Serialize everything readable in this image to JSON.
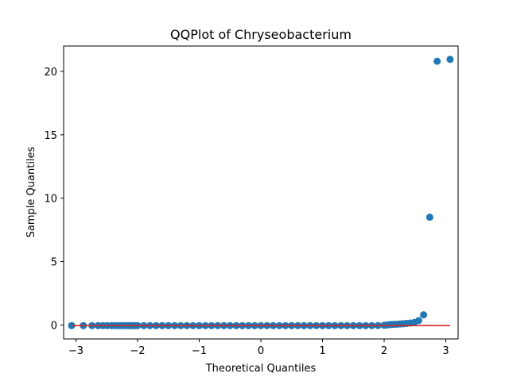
{
  "chart_data": {
    "type": "scatter",
    "title": "QQPlot of Chryseobacterium",
    "xlabel": "Theoretical Quantiles",
    "ylabel": "Sample Quantiles",
    "xlim": [
      -3.2,
      3.2
    ],
    "ylim": [
      -1.1,
      22.0
    ],
    "xticks": [
      -3,
      -2,
      -1,
      0,
      1,
      2,
      3
    ],
    "xtick_labels": [
      "−3",
      "−2",
      "−1",
      "0",
      "1",
      "2",
      "3"
    ],
    "yticks": [
      0,
      5,
      10,
      15,
      20
    ],
    "ytick_labels": [
      "0",
      "5",
      "10",
      "15",
      "20"
    ],
    "grid": false,
    "colors": {
      "points": "#1f77b4",
      "reference_line": "#d62728"
    },
    "reference_line": {
      "x": [
        -3.07,
        3.07
      ],
      "y": [
        -0.05,
        -0.05
      ]
    },
    "series": [
      {
        "x": [
          -3.07,
          -2.88,
          -2.74,
          -2.64,
          -2.56,
          -2.49,
          -2.42,
          -2.36,
          -2.31,
          -2.26,
          -2.21,
          -2.16,
          -2.12,
          -2.08,
          -2.04,
          -2.0,
          -1.9,
          -1.8,
          -1.7,
          -1.6,
          -1.5,
          -1.4,
          -1.3,
          -1.2,
          -1.1,
          -1.0,
          -0.9,
          -0.8,
          -0.7,
          -0.6,
          -0.5,
          -0.4,
          -0.3,
          -0.2,
          -0.1,
          0.0,
          0.1,
          0.2,
          0.3,
          0.4,
          0.5,
          0.6,
          0.7,
          0.8,
          0.9,
          1.0,
          1.1,
          1.2,
          1.3,
          1.4,
          1.5,
          1.6,
          1.7,
          1.8,
          1.9,
          2.0,
          2.04,
          2.08,
          2.12,
          2.16,
          2.21,
          2.26,
          2.31,
          2.36,
          2.42,
          2.49,
          2.56,
          2.64,
          2.74,
          2.86,
          3.07
        ],
        "y": [
          -0.05,
          -0.05,
          -0.05,
          -0.05,
          -0.05,
          -0.05,
          -0.05,
          -0.05,
          -0.05,
          -0.05,
          -0.05,
          -0.05,
          -0.05,
          -0.05,
          -0.05,
          -0.05,
          -0.05,
          -0.05,
          -0.05,
          -0.05,
          -0.05,
          -0.05,
          -0.05,
          -0.05,
          -0.05,
          -0.05,
          -0.05,
          -0.05,
          -0.05,
          -0.05,
          -0.05,
          -0.05,
          -0.05,
          -0.05,
          -0.05,
          -0.05,
          -0.05,
          -0.05,
          -0.05,
          -0.05,
          -0.05,
          -0.05,
          -0.05,
          -0.05,
          -0.05,
          -0.05,
          -0.05,
          -0.05,
          -0.05,
          -0.05,
          -0.05,
          -0.05,
          -0.05,
          -0.05,
          -0.04,
          -0.02,
          0.0,
          0.02,
          0.04,
          0.05,
          0.06,
          0.08,
          0.1,
          0.12,
          0.15,
          0.2,
          0.35,
          0.8,
          8.5,
          20.8,
          20.95
        ]
      }
    ]
  }
}
